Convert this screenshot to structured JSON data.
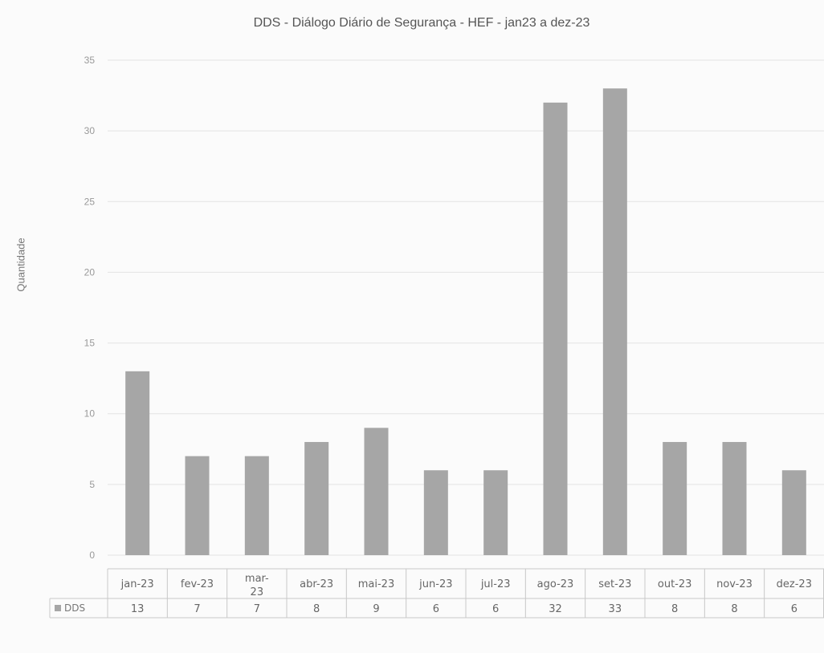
{
  "chart_data": {
    "type": "bar",
    "title": "DDS - Diálogo Diário de Segurança  - HEF - jan23 a dez-23",
    "xlabel": "",
    "ylabel": "Quantidade",
    "ylim": [
      0,
      35
    ],
    "yticks": [
      "0",
      "5",
      "10",
      "15",
      "20",
      "25",
      "30",
      "35"
    ],
    "grid": true,
    "categories": [
      "jan-23",
      "fev-23",
      "mar-23",
      "abr-23",
      "mai-23",
      "jun-23",
      "jul-23",
      "ago-23",
      "set-23",
      "out-23",
      "nov-23",
      "dez-23"
    ],
    "category_lines": [
      [
        "jan-23"
      ],
      [
        "fev-23"
      ],
      [
        "mar-",
        "23"
      ],
      [
        "abr-23"
      ],
      [
        "mai-23"
      ],
      [
        "jun-23"
      ],
      [
        "jul-23"
      ],
      [
        "ago-23"
      ],
      [
        "set-23"
      ],
      [
        "out-23"
      ],
      [
        "nov-23"
      ],
      [
        "dez-23"
      ]
    ],
    "series": [
      {
        "name": "DDS",
        "values": [
          13,
          7,
          7,
          8,
          9,
          6,
          6,
          32,
          33,
          8,
          8,
          6
        ]
      }
    ],
    "data_table": true,
    "colors": {
      "bar": "#a6a6a6",
      "grid": "#e3e3e3",
      "table_border": "#c8c8c8"
    }
  }
}
